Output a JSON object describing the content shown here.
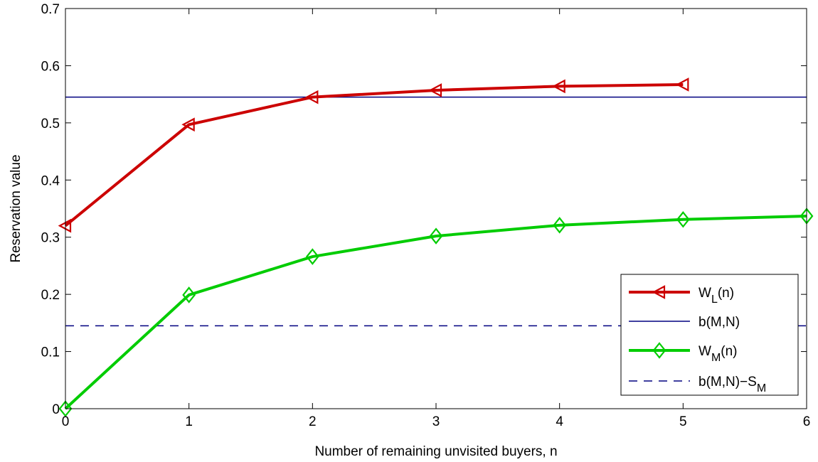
{
  "chart_data": {
    "type": "line",
    "xlabel": "Number of remaining unvisited buyers, n",
    "ylabel": "Reservation value",
    "xlim": [
      0,
      6
    ],
    "ylim": [
      0,
      0.7
    ],
    "x_ticks": [
      "0",
      "1",
      "2",
      "3",
      "4",
      "5",
      "6"
    ],
    "y_ticks": [
      "0",
      "0.1",
      "0.2",
      "0.3",
      "0.4",
      "0.5",
      "0.6",
      "0.7"
    ],
    "grid": false,
    "legend_position": "lower-right",
    "series": [
      {
        "key": "wl",
        "name": "W",
        "name_sub": "L",
        "name_suffix": "(n)",
        "style": "solid",
        "marker": "triangle-left",
        "color": "#cc0000",
        "x": [
          0,
          1,
          2,
          3,
          4,
          5
        ],
        "y": [
          0.32,
          0.497,
          0.545,
          0.557,
          0.564,
          0.567
        ]
      },
      {
        "key": "b",
        "name": "b(M,N)",
        "style": "solid",
        "marker": "none",
        "color": "#000080",
        "x": [
          0,
          6
        ],
        "y": [
          0.545,
          0.545
        ]
      },
      {
        "key": "wm",
        "name": "W",
        "name_sub": "M",
        "name_suffix": "(n)",
        "style": "solid",
        "marker": "diamond",
        "color": "#00cc00",
        "x": [
          0,
          1,
          2,
          3,
          4,
          5,
          6
        ],
        "y": [
          0.0,
          0.199,
          0.266,
          0.302,
          0.321,
          0.331,
          0.337
        ]
      },
      {
        "key": "bs",
        "name": "b(M,N)−S",
        "name_sub": "M",
        "name_suffix": "",
        "style": "dashed",
        "marker": "none",
        "color": "#000080",
        "x": [
          0,
          6
        ],
        "y": [
          0.145,
          0.145
        ]
      }
    ]
  }
}
